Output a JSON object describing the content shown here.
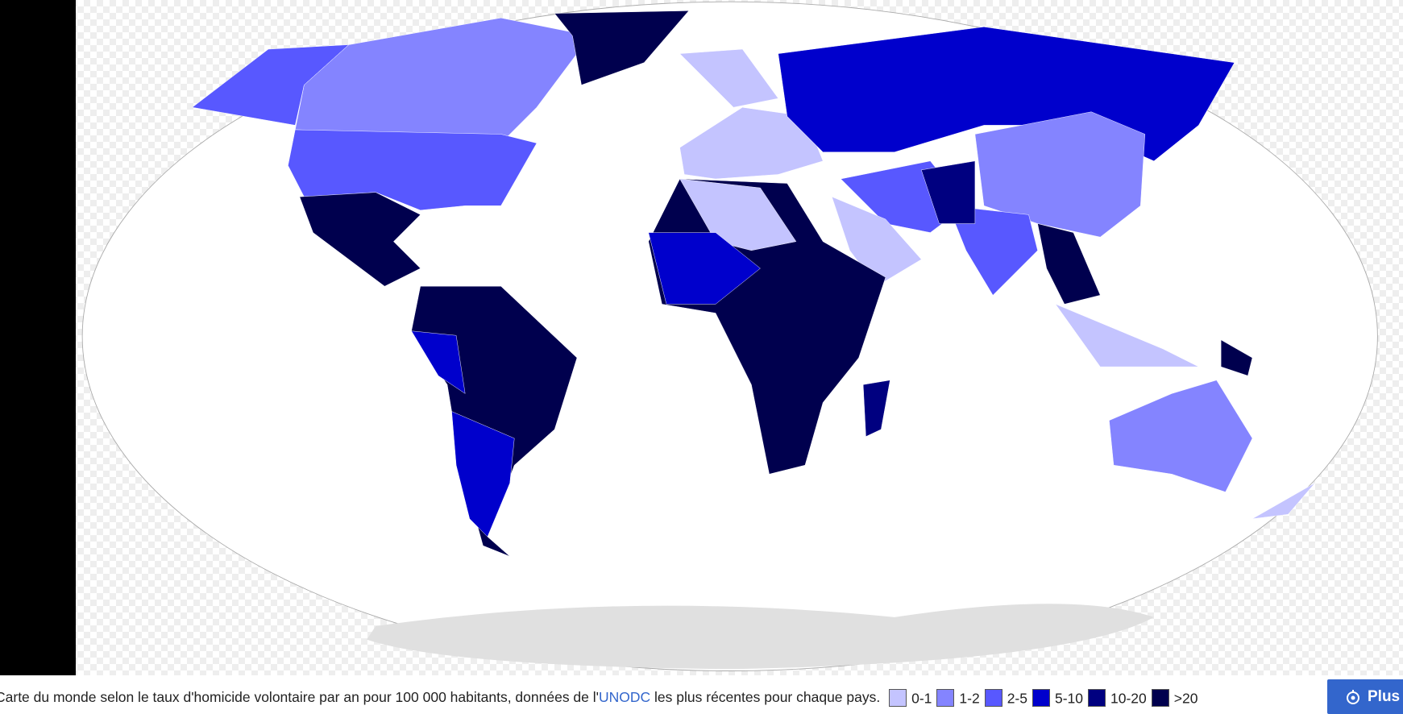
{
  "caption": {
    "text_before": "Carte du monde selon le taux d'homicide volontaire par an pour 100 000 habitants, données de l'",
    "link": "UNODC",
    "text_after": "les plus récentes pour chaque pays."
  },
  "legend": [
    {
      "label": "0-1",
      "color": "#c4c4ff"
    },
    {
      "label": "1-2",
      "color": "#8484ff"
    },
    {
      "label": "2-5",
      "color": "#5858ff"
    },
    {
      "label": "5-10",
      "color": "#0000cc"
    },
    {
      "label": "10-20",
      "color": "#000080"
    },
    {
      "label": ">20",
      "color": "#00004e"
    }
  ],
  "button": {
    "label": "Plus"
  }
}
